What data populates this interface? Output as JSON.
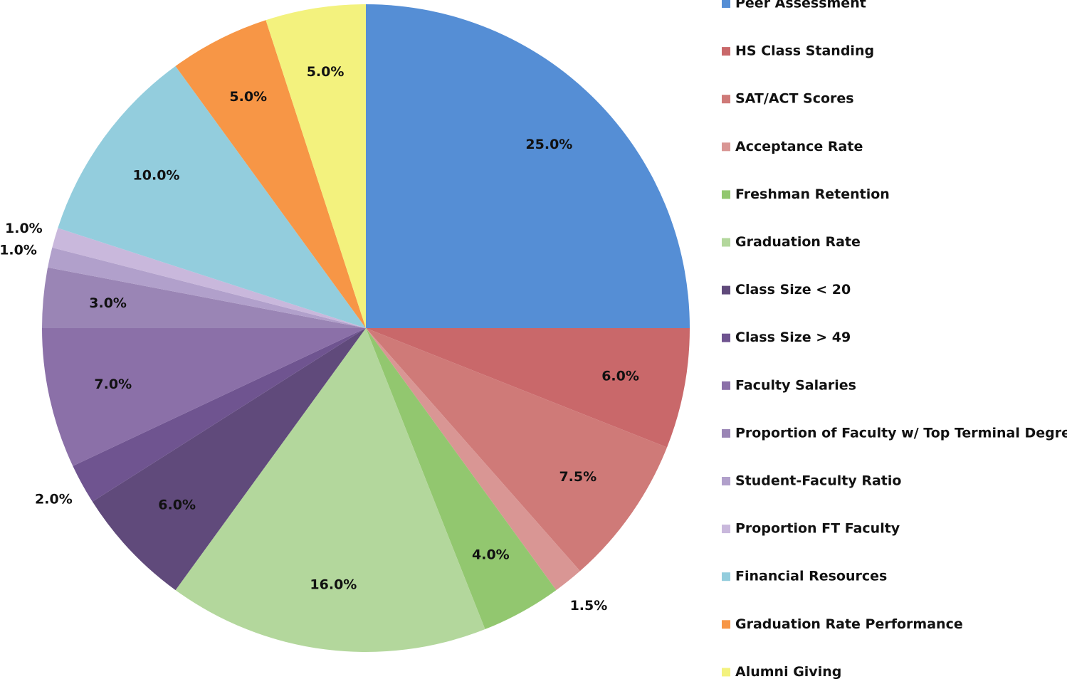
{
  "chart_data": {
    "type": "pie",
    "categories": [
      "Peer Assessment",
      "HS Class Standing",
      "SAT/ACT Scores",
      "Acceptance Rate",
      "Freshman Retention",
      "Graduation  Rate",
      "Class Size < 20",
      "Class Size > 49",
      "Faculty Salaries",
      "Proportion  of Faculty w/ Top Terminal Degree",
      "Student-Faculty Ratio",
      "Proportion  FT Faculty",
      "Financial Resources",
      "Graduation  Rate Performance",
      "Alumni Giving"
    ],
    "values": [
      25,
      6,
      7.5,
      1.5,
      4,
      16,
      6,
      2,
      7,
      3,
      1,
      1,
      10,
      5,
      5
    ],
    "value_labels": [
      "25.0%",
      "6.0%",
      "7.5%",
      "1.5%",
      "4.0%",
      "16.0%",
      "6.0%",
      "2.0%",
      "7.0%",
      "3.0%",
      "1.0%",
      "1.0%",
      "10.0%",
      "5.0%",
      "5.0%"
    ],
    "colors": [
      "#558ed5",
      "#c9686a",
      "#cf7a78",
      "#d99694",
      "#92c76f",
      "#b3d79c",
      "#604a7b",
      "#6f5490",
      "#8b70a8",
      "#9a85b5",
      "#b1a0cb",
      "#c9b8dc",
      "#93cddd",
      "#f79646",
      "#f3f27e"
    ],
    "legend": "right"
  }
}
